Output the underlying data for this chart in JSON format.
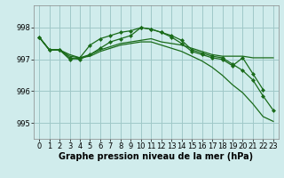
{
  "bg_color": "#d0ecec",
  "grid_color": "#a0c8c8",
  "line_color": "#1a6b1a",
  "marker_color": "#1a6b1a",
  "xlabel": "Graphe pression niveau de la mer (hPa)",
  "xlabel_fontsize": 7,
  "tick_fontsize": 6,
  "yticks": [
    995,
    996,
    997,
    998
  ],
  "ylim": [
    994.5,
    998.7
  ],
  "xlim": [
    -0.5,
    23.5
  ],
  "xticks": [
    0,
    1,
    2,
    3,
    4,
    5,
    6,
    7,
    8,
    9,
    10,
    11,
    12,
    13,
    14,
    15,
    16,
    17,
    18,
    19,
    20,
    21,
    22,
    23
  ],
  "series": [
    {
      "y": [
        997.7,
        997.3,
        997.3,
        997.15,
        997.05,
        997.15,
        997.3,
        997.4,
        997.5,
        997.55,
        997.6,
        997.65,
        997.55,
        997.5,
        997.45,
        997.35,
        997.25,
        997.15,
        997.1,
        997.1,
        997.1,
        997.05,
        997.05,
        997.05
      ],
      "has_markers": false,
      "lw": 0.9
    },
    {
      "y": [
        997.7,
        997.3,
        997.3,
        997.05,
        997.0,
        997.15,
        997.35,
        997.55,
        997.65,
        997.75,
        998.0,
        997.95,
        997.85,
        997.75,
        997.6,
        997.3,
        997.2,
        997.1,
        997.05,
        996.85,
        996.65,
        996.35,
        995.85,
        995.4
      ],
      "has_markers": true,
      "lw": 0.9
    },
    {
      "y": [
        997.7,
        997.3,
        997.3,
        997.0,
        997.05,
        997.45,
        997.65,
        997.75,
        997.85,
        997.9,
        998.0,
        997.95,
        997.85,
        997.7,
        997.5,
        997.25,
        997.15,
        997.05,
        997.0,
        996.8,
        997.05,
        996.55,
        996.05,
        null
      ],
      "has_markers": true,
      "lw": 0.9
    },
    {
      "y": [
        997.7,
        997.3,
        997.3,
        997.1,
        997.05,
        997.1,
        997.25,
        997.35,
        997.45,
        997.5,
        997.55,
        997.55,
        997.45,
        997.35,
        997.25,
        997.1,
        996.95,
        996.75,
        996.5,
        996.2,
        995.95,
        995.6,
        995.2,
        995.05
      ],
      "has_markers": false,
      "lw": 0.9
    }
  ]
}
